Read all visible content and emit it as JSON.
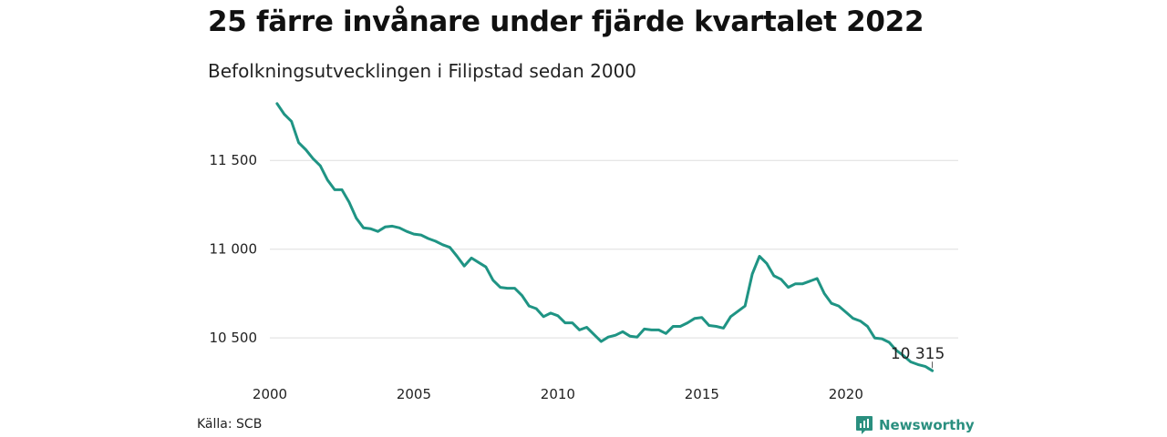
{
  "title": "25 färre invånare under fjärde kvartalet 2022",
  "subtitle": "Befolkningsutvecklingen i Filipstad sedan 2000",
  "source": "Källa: SCB",
  "brand": {
    "name": "Newsworthy",
    "icon": "newsworthy-logo-icon",
    "color": "#2a8f7f"
  },
  "chart_data": {
    "type": "line",
    "title": "25 färre invånare under fjärde kvartalet 2022",
    "subtitle": "Befolkningsutvecklingen i Filipstad sedan 2000",
    "xlabel": "",
    "ylabel": "",
    "xlim": [
      2000,
      2023.9
    ],
    "ylim": [
      10270,
      11850
    ],
    "x_ticks": [
      2000,
      2005,
      2010,
      2015,
      2020
    ],
    "x_tick_labels": [
      "2000",
      "2005",
      "2010",
      "2015",
      "2020"
    ],
    "y_ticks": [
      10500,
      11000,
      11500
    ],
    "y_tick_labels": [
      "10 500",
      "11 000",
      "11 500"
    ],
    "grid": "horizontal",
    "line_color": "#1f9484",
    "end_label": "10 315",
    "series": [
      {
        "x_start": 2000.25,
        "x_step": 0.25,
        "values": [
          11820,
          11760,
          11720,
          11600,
          11560,
          11510,
          11470,
          11390,
          11335,
          11335,
          11265,
          11175,
          11120,
          11115,
          11100,
          11125,
          11130,
          11120,
          11100,
          11085,
          11080,
          11060,
          11045,
          11025,
          11010,
          10960,
          10905,
          10950,
          10925,
          10900,
          10825,
          10785,
          10780,
          10780,
          10740,
          10680,
          10665,
          10620,
          10640,
          10625,
          10585,
          10585,
          10545,
          10560,
          10520,
          10480,
          10505,
          10515,
          10535,
          10510,
          10505,
          10550,
          10545,
          10545,
          10525,
          10565,
          10565,
          10585,
          10610,
          10615,
          10570,
          10565,
          10555,
          10620,
          10650,
          10680,
          10860,
          10960,
          10920,
          10850,
          10830,
          10785,
          10805,
          10805,
          10820,
          10835,
          10750,
          10695,
          10680,
          10645,
          10610,
          10595,
          10565,
          10500,
          10495,
          10475,
          10430,
          10400,
          10365,
          10350,
          10340,
          10315
        ]
      }
    ]
  }
}
